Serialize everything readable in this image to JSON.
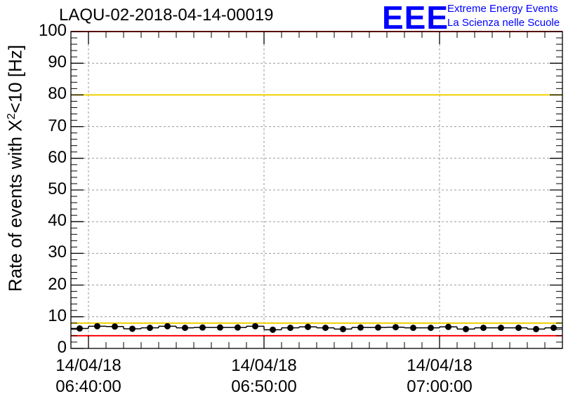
{
  "title": "LAQU-02-2018-04-14-00019",
  "logo": {
    "mark": "EEE",
    "line1": "Extreme Energy Events",
    "line2": "La Scienza nelle Scuole"
  },
  "chart_data": {
    "type": "scatter",
    "title": "LAQU-02-2018-04-14-00019",
    "xlabel": "",
    "ylabel_prefix": "Rate of events with X",
    "ylabel_sup": "2",
    "ylabel_suffix": "<10 [Hz]",
    "ylim": [
      0,
      100
    ],
    "yticks": [
      "0",
      "10",
      "20",
      "30",
      "40",
      "50",
      "60",
      "70",
      "80",
      "90",
      "100"
    ],
    "xlim": [
      "06:39:00",
      "07:07:00"
    ],
    "xticks": [
      {
        "date": "14/04/18",
        "time": "06:40:00"
      },
      {
        "date": "14/04/18",
        "time": "06:50:00"
      },
      {
        "date": "14/04/18",
        "time": "07:00:00"
      }
    ],
    "grid": true,
    "reference_lines": [
      {
        "value": 100,
        "color": "#ff0000"
      },
      {
        "value": 80,
        "color": "#f0d000"
      },
      {
        "value": 8,
        "color": "#f0d000"
      },
      {
        "value": 4,
        "color": "#ff0000"
      }
    ],
    "series": [
      {
        "marker_color": "#000000",
        "x": [
          "06:39:30",
          "06:40:30",
          "06:41:30",
          "06:42:30",
          "06:43:30",
          "06:44:30",
          "06:45:30",
          "06:46:30",
          "06:47:30",
          "06:48:30",
          "06:49:30",
          "06:50:30",
          "06:51:30",
          "06:52:30",
          "06:53:30",
          "06:54:30",
          "06:55:30",
          "06:56:30",
          "06:57:30",
          "06:58:30",
          "06:59:30",
          "07:00:30",
          "07:01:30",
          "07:02:30",
          "07:03:30",
          "07:04:30",
          "07:05:30",
          "07:06:30"
        ],
        "y": [
          6.3,
          7.0,
          6.9,
          6.2,
          6.5,
          7.0,
          6.5,
          6.6,
          6.6,
          6.6,
          7.0,
          5.9,
          6.5,
          6.8,
          6.5,
          6.1,
          6.6,
          6.6,
          6.7,
          6.5,
          6.5,
          6.8,
          6.1,
          6.5,
          6.5,
          6.5,
          6.1,
          6.5
        ]
      }
    ]
  }
}
